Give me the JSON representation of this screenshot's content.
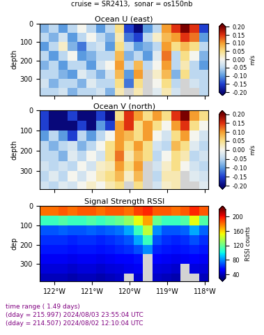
{
  "title": "cruise = SR2413,  sonar = os150nb",
  "footer": [
    "time range ( 1.49 days)",
    "(dday = 215.997) 2024/08/03 23:55:04 UTC",
    "(dday = 214.507) 2024/08/02 12:10:04 UTC"
  ],
  "chart_data": [
    {
      "type": "heatmap",
      "title": "Ocean U (east)",
      "y_label": "depth",
      "tick_labels": "y",
      "x": [
        -122.4,
        -122.15,
        -121.9,
        -121.65,
        -121.4,
        -121.15,
        -120.9,
        -120.65,
        -120.4,
        -120.15,
        -119.9,
        -119.65,
        -119.4,
        -119.15,
        -118.9,
        -118.65,
        -118.4,
        -118.15,
        -117.9
      ],
      "y": [
        0,
        50,
        100,
        150,
        200,
        250,
        300,
        350,
        400
      ],
      "xlim": [
        -122.4,
        -117.9
      ],
      "ylim": [
        390,
        0
      ],
      "xticks": [
        {
          "value": -122,
          "label": "122°W"
        },
        {
          "value": -121,
          "label": "121°W"
        },
        {
          "value": -120,
          "label": "120°W"
        },
        {
          "value": -119,
          "label": "119°W"
        },
        {
          "value": -118,
          "label": "118°W"
        }
      ],
      "yticks": [
        0,
        100,
        200,
        300
      ],
      "cells": [
        [
          -0.08,
          -0.05,
          -0.1,
          -0.05,
          0.0,
          -0.05,
          -0.1,
          -0.05,
          0.05,
          -0.15,
          -0.2,
          -0.1,
          -0.05,
          0.1,
          0.15,
          0.2,
          0.15,
          -0.15
        ],
        [
          -0.05,
          -0.08,
          -0.03,
          -0.1,
          -0.05,
          0.0,
          -0.05,
          -0.08,
          0.03,
          -0.12,
          -0.15,
          -0.05,
          0.02,
          0.08,
          0.1,
          0.15,
          0.12,
          -0.1
        ],
        [
          -0.1,
          -0.05,
          0.02,
          -0.08,
          -0.12,
          -0.05,
          -0.03,
          -0.1,
          0.05,
          -0.05,
          -0.1,
          -0.08,
          -0.05,
          0.1,
          0.05,
          0.08,
          0.05,
          -0.05
        ],
        [
          -0.05,
          -0.1,
          -0.05,
          0.0,
          -0.1,
          -0.08,
          -0.05,
          -0.05,
          0.08,
          -0.08,
          -0.05,
          -0.1,
          -0.02,
          0.12,
          -0.05,
          0.05,
          0.0,
          -0.08
        ],
        [
          -0.08,
          -0.05,
          -0.1,
          -0.05,
          -0.05,
          -0.1,
          -0.03,
          0.0,
          0.1,
          -0.05,
          0.08,
          -0.05,
          0.0,
          0.1,
          -0.05,
          0.03,
          -0.05,
          -0.1
        ],
        [
          -0.05,
          -0.05,
          -0.08,
          -0.1,
          -0.02,
          -0.05,
          -0.08,
          -0.03,
          0.08,
          -0.1,
          0.1,
          null,
          0.02,
          0.08,
          -0.08,
          0.05,
          -0.05,
          -0.05
        ],
        [
          -0.03,
          -0.08,
          -0.05,
          -0.05,
          -0.08,
          -0.02,
          -0.05,
          -0.05,
          0.05,
          -0.12,
          0.05,
          null,
          0.0,
          0.05,
          -0.05,
          null,
          -0.03,
          -0.05
        ],
        [
          -0.05,
          -0.05,
          -0.03,
          -0.08,
          -0.05,
          -0.05,
          -0.03,
          -0.08,
          0.03,
          null,
          0.03,
          null,
          -0.02,
          0.03,
          -0.03,
          null,
          null,
          -0.05
        ]
      ],
      "colorbar": {
        "label": "m/s",
        "range": [
          -0.2,
          0.2
        ],
        "ticks": [
          {
            "value": -0.2,
            "label": "-0.20"
          },
          {
            "value": -0.15,
            "label": "-0.15"
          },
          {
            "value": -0.1,
            "label": "-0.10"
          },
          {
            "value": -0.05,
            "label": "-0.05"
          },
          {
            "value": 0,
            "label": "0.00"
          },
          {
            "value": 0.05,
            "label": "0.05"
          },
          {
            "value": 0.1,
            "label": "0.10"
          },
          {
            "value": 0.15,
            "label": "0.15"
          },
          {
            "value": 0.2,
            "label": "0.20"
          }
        ]
      }
    },
    {
      "type": "heatmap",
      "title": "Ocean V (north)",
      "y_label": "depth",
      "tick_labels": "y",
      "x": [
        -122.4,
        -122.15,
        -121.9,
        -121.65,
        -121.4,
        -121.15,
        -120.9,
        -120.65,
        -120.4,
        -120.15,
        -119.9,
        -119.65,
        -119.4,
        -119.15,
        -118.9,
        -118.65,
        -118.4,
        -118.15,
        -117.9
      ],
      "y": [
        0,
        50,
        100,
        150,
        200,
        250,
        300,
        350,
        400
      ],
      "xlim": [
        -122.4,
        -117.9
      ],
      "ylim": [
        390,
        0
      ],
      "xticks": [
        {
          "value": -122,
          "label": "122°W"
        },
        {
          "value": -121,
          "label": "121°W"
        },
        {
          "value": -120,
          "label": "120°W"
        },
        {
          "value": -119,
          "label": "119°W"
        },
        {
          "value": -118,
          "label": "118°W"
        }
      ],
      "yticks": [
        0,
        100,
        200,
        300
      ],
      "cells": [
        [
          -0.15,
          -0.2,
          -0.2,
          -0.15,
          -0.2,
          -0.2,
          -0.15,
          -0.2,
          0.05,
          0.15,
          0.1,
          0.05,
          0.1,
          0.05,
          0.15,
          0.2,
          0.1,
          0.05
        ],
        [
          -0.15,
          -0.2,
          -0.2,
          -0.2,
          -0.15,
          -0.2,
          -0.1,
          -0.15,
          0.1,
          0.15,
          0.05,
          0.1,
          0.05,
          0.0,
          0.1,
          0.15,
          0.05,
          0.0
        ],
        [
          -0.1,
          -0.05,
          -0.1,
          -0.15,
          -0.05,
          -0.1,
          -0.05,
          0.0,
          0.1,
          0.08,
          0.05,
          0.1,
          0.0,
          -0.03,
          0.05,
          0.1,
          0.0,
          -0.03
        ],
        [
          -0.05,
          -0.08,
          -0.05,
          -0.03,
          -0.08,
          -0.05,
          0.0,
          0.05,
          0.1,
          0.05,
          0.1,
          0.05,
          -0.03,
          -0.05,
          0.08,
          0.05,
          -0.02,
          -0.05
        ],
        [
          -0.05,
          -0.05,
          -0.08,
          -0.02,
          -0.05,
          0.0,
          -0.03,
          0.05,
          0.12,
          0.03,
          0.08,
          0.05,
          -0.05,
          0.0,
          0.05,
          0.03,
          -0.05,
          -0.03
        ],
        [
          -0.03,
          -0.05,
          -0.03,
          -0.05,
          0.0,
          -0.03,
          0.02,
          0.03,
          0.1,
          0.05,
          0.1,
          null,
          -0.03,
          0.02,
          0.05,
          0.0,
          -0.03,
          -0.05
        ],
        [
          -0.05,
          -0.02,
          -0.05,
          0.0,
          -0.03,
          0.0,
          0.03,
          0.05,
          0.08,
          0.02,
          0.08,
          null,
          -0.05,
          0.03,
          0.03,
          null,
          -0.02,
          -0.03
        ],
        [
          -0.03,
          -0.05,
          -0.02,
          -0.03,
          0.0,
          0.02,
          0.0,
          0.03,
          0.05,
          null,
          0.05,
          null,
          -0.03,
          0.02,
          0.03,
          null,
          null,
          -0.02
        ]
      ],
      "colorbar": {
        "label": "m/s",
        "range": [
          -0.2,
          0.2
        ],
        "ticks": [
          {
            "value": -0.2,
            "label": "-0.20"
          },
          {
            "value": -0.15,
            "label": "-0.15"
          },
          {
            "value": -0.1,
            "label": "-0.10"
          },
          {
            "value": -0.05,
            "label": "-0.05"
          },
          {
            "value": 0,
            "label": "0.00"
          },
          {
            "value": 0.05,
            "label": "0.05"
          },
          {
            "value": 0.1,
            "label": "0.10"
          },
          {
            "value": 0.15,
            "label": "0.15"
          },
          {
            "value": 0.2,
            "label": "0.20"
          }
        ]
      }
    },
    {
      "type": "heatmap",
      "title": "Signal Strength RSSI",
      "y_label": "dep",
      "x": [
        -122.4,
        -122.15,
        -121.9,
        -121.65,
        -121.4,
        -121.15,
        -120.9,
        -120.65,
        -120.4,
        -120.15,
        -119.9,
        -119.65,
        -119.4,
        -119.15,
        -118.9,
        -118.65,
        -118.4,
        -118.15,
        -117.9
      ],
      "y": [
        0,
        50,
        100,
        150,
        200,
        250,
        300,
        350,
        400
      ],
      "xlim": [
        -122.4,
        -117.9
      ],
      "ylim": [
        390,
        0
      ],
      "xticks": [
        {
          "value": -122,
          "label": "122°W"
        },
        {
          "value": -121,
          "label": "121°W"
        },
        {
          "value": -120,
          "label": "120°W"
        },
        {
          "value": -119,
          "label": "119°W"
        },
        {
          "value": -118,
          "label": "118°W"
        }
      ],
      "yticks": [
        0,
        100,
        200,
        300
      ],
      "cells": [
        [
          180,
          180,
          185,
          180,
          185,
          185,
          180,
          185,
          185,
          180,
          190,
          195,
          185,
          185,
          180,
          185,
          195,
          185
        ],
        [
          110,
          110,
          115,
          110,
          110,
          115,
          110,
          115,
          120,
          130,
          150,
          170,
          120,
          110,
          110,
          115,
          150,
          115
        ],
        [
          70,
          70,
          72,
          70,
          70,
          72,
          70,
          72,
          75,
          85,
          110,
          140,
          80,
          70,
          70,
          72,
          85,
          72
        ],
        [
          62,
          62,
          62,
          60,
          62,
          62,
          60,
          62,
          65,
          70,
          85,
          110,
          68,
          62,
          60,
          62,
          68,
          62
        ],
        [
          58,
          58,
          58,
          56,
          58,
          58,
          56,
          58,
          60,
          62,
          68,
          80,
          60,
          58,
          56,
          58,
          60,
          58
        ],
        [
          50,
          50,
          50,
          48,
          50,
          50,
          48,
          50,
          52,
          54,
          56,
          null,
          52,
          50,
          48,
          50,
          52,
          50
        ],
        [
          45,
          45,
          45,
          43,
          45,
          45,
          43,
          45,
          46,
          48,
          50,
          null,
          46,
          45,
          43,
          null,
          46,
          45
        ],
        [
          40,
          40,
          40,
          38,
          40,
          40,
          38,
          40,
          42,
          null,
          44,
          null,
          42,
          40,
          38,
          null,
          null,
          40
        ]
      ],
      "colorbar": {
        "label": "RSSI counts",
        "range": [
          30,
          220
        ],
        "ticks": [
          40,
          80,
          120,
          160,
          200
        ]
      }
    }
  ]
}
